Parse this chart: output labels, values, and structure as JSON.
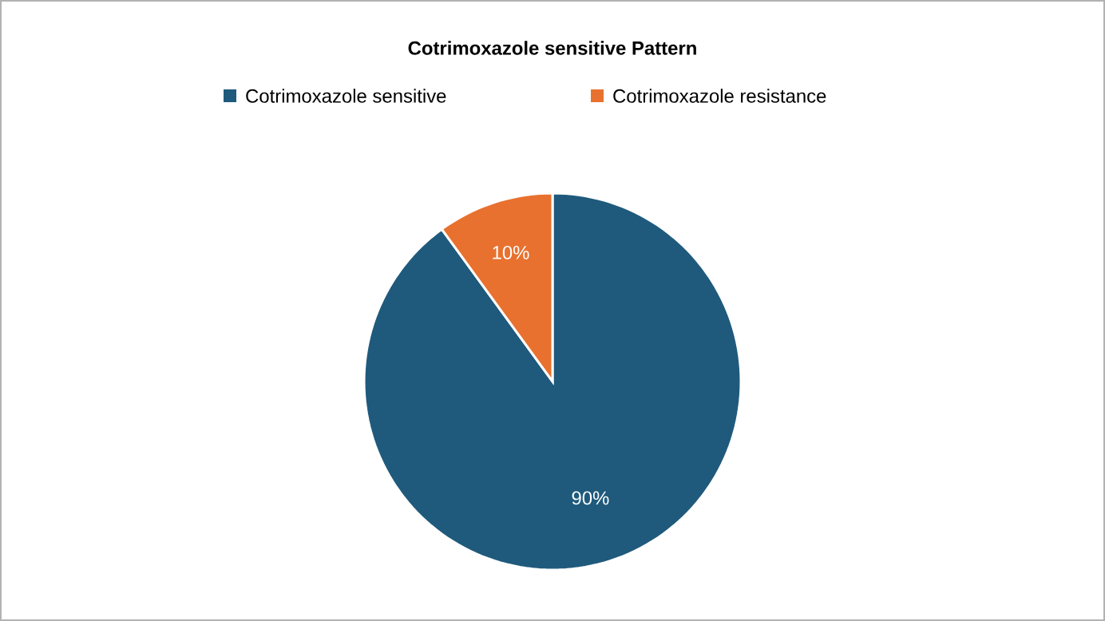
{
  "chart_data": {
    "type": "pie",
    "title": "Cotrimoxazole sensitive Pattern",
    "categories": [
      "Cotrimoxazole sensitive",
      "Cotrimoxazole resistance"
    ],
    "values": [
      90,
      10
    ],
    "colors": [
      "#1f5a7c",
      "#e8712f"
    ],
    "value_labels": [
      "90%",
      "10%"
    ],
    "legend": "top"
  }
}
